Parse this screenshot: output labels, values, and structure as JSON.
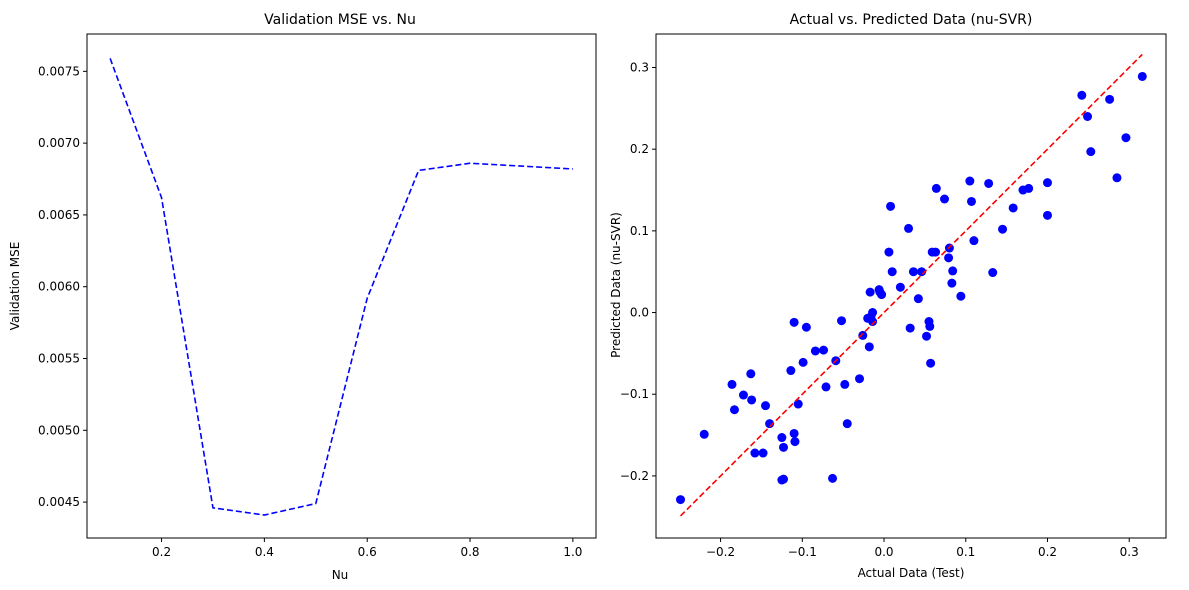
{
  "chart_data": [
    {
      "type": "line",
      "title": "Validation MSE vs. Nu",
      "xlabel": "Nu",
      "ylabel": "Validation MSE",
      "xlim": [
        0.055,
        1.045
      ],
      "ylim": [
        0.00425,
        0.00776
      ],
      "x_ticks": [
        0.2,
        0.4,
        0.6,
        0.8,
        1.0
      ],
      "x_tick_labels": [
        "0.2",
        "0.4",
        "0.6",
        "0.8",
        "1.0"
      ],
      "y_ticks": [
        0.0045,
        0.005,
        0.0055,
        0.006,
        0.0065,
        0.007,
        0.0075
      ],
      "y_tick_labels": [
        "0.0045",
        "0.0050",
        "0.0055",
        "0.0060",
        "0.0065",
        "0.0070",
        "0.0075"
      ],
      "grid": false,
      "series": [
        {
          "style": "dashed",
          "color": "#0000ff",
          "x": [
            0.1,
            0.2,
            0.3,
            0.4,
            0.5,
            0.6,
            0.7,
            0.8,
            0.9,
            1.0
          ],
          "y": [
            0.00759,
            0.00662,
            0.00446,
            0.00441,
            0.00449,
            0.00592,
            0.00681,
            0.00686,
            0.00684,
            0.00682
          ]
        }
      ]
    },
    {
      "type": "scatter",
      "title": "Actual vs. Predicted Data (nu-SVR)",
      "xlabel": "Actual Data (Test)",
      "ylabel": "Predicted Data (nu-SVR)",
      "xlim": [
        -0.279,
        0.345
      ],
      "ylim": [
        -0.276,
        0.341
      ],
      "x_ticks": [
        -0.2,
        -0.1,
        0.0,
        0.1,
        0.2,
        0.3
      ],
      "x_tick_labels": [
        "−0.2",
        "−0.1",
        "0.0",
        "0.1",
        "0.2",
        "0.3"
      ],
      "y_ticks": [
        -0.2,
        -0.1,
        0.0,
        0.1,
        0.2,
        0.3
      ],
      "y_tick_labels": [
        "−0.2",
        "−0.1",
        "0.0",
        "0.1",
        "0.2",
        "0.3"
      ],
      "grid": false,
      "series": [
        {
          "color": "#0000ff",
          "marker": "circle",
          "points": [
            [
              -0.249,
              -0.229
            ],
            [
              -0.22,
              -0.149
            ],
            [
              -0.186,
              -0.088
            ],
            [
              -0.183,
              -0.119
            ],
            [
              -0.172,
              -0.101
            ],
            [
              -0.163,
              -0.075
            ],
            [
              -0.162,
              -0.107
            ],
            [
              -0.158,
              -0.172
            ],
            [
              -0.148,
              -0.172
            ],
            [
              -0.145,
              -0.114
            ],
            [
              -0.14,
              -0.136
            ],
            [
              -0.125,
              -0.153
            ],
            [
              -0.125,
              -0.205
            ],
            [
              -0.123,
              -0.204
            ],
            [
              -0.123,
              -0.165
            ],
            [
              -0.114,
              -0.071
            ],
            [
              -0.11,
              -0.012
            ],
            [
              -0.11,
              -0.148
            ],
            [
              -0.109,
              -0.158
            ],
            [
              -0.105,
              -0.112
            ],
            [
              -0.099,
              -0.061
            ],
            [
              -0.095,
              -0.018
            ],
            [
              -0.084,
              -0.047
            ],
            [
              -0.074,
              -0.046
            ],
            [
              -0.071,
              -0.091
            ],
            [
              -0.063,
              -0.203
            ],
            [
              -0.059,
              -0.059
            ],
            [
              -0.052,
              -0.01
            ],
            [
              -0.048,
              -0.088
            ],
            [
              -0.045,
              -0.136
            ],
            [
              -0.03,
              -0.081
            ],
            [
              -0.026,
              -0.028
            ],
            [
              -0.02,
              -0.007
            ],
            [
              -0.018,
              -0.042
            ],
            [
              -0.017,
              0.025
            ],
            [
              -0.016,
              -0.005
            ],
            [
              -0.014,
              0.0
            ],
            [
              -0.014,
              -0.011
            ],
            [
              -0.006,
              0.028
            ],
            [
              -0.005,
              0.025
            ],
            [
              -0.003,
              0.022
            ],
            [
              0.006,
              0.074
            ],
            [
              0.008,
              0.13
            ],
            [
              0.01,
              0.05
            ],
            [
              0.02,
              0.031
            ],
            [
              0.03,
              0.103
            ],
            [
              0.032,
              -0.019
            ],
            [
              0.036,
              0.05
            ],
            [
              0.042,
              0.017
            ],
            [
              0.046,
              0.05
            ],
            [
              0.052,
              -0.029
            ],
            [
              0.055,
              -0.011
            ],
            [
              0.056,
              -0.017
            ],
            [
              0.057,
              -0.062
            ],
            [
              0.059,
              0.074
            ],
            [
              0.063,
              0.074
            ],
            [
              0.064,
              0.152
            ],
            [
              0.074,
              0.139
            ],
            [
              0.079,
              0.067
            ],
            [
              0.08,
              0.079
            ],
            [
              0.083,
              0.036
            ],
            [
              0.084,
              0.051
            ],
            [
              0.094,
              0.02
            ],
            [
              0.105,
              0.161
            ],
            [
              0.107,
              0.136
            ],
            [
              0.11,
              0.088
            ],
            [
              0.128,
              0.158
            ],
            [
              0.133,
              0.049
            ],
            [
              0.145,
              0.102
            ],
            [
              0.158,
              0.128
            ],
            [
              0.17,
              0.15
            ],
            [
              0.177,
              0.152
            ],
            [
              0.2,
              0.119
            ],
            [
              0.2,
              0.159
            ],
            [
              0.242,
              0.266
            ],
            [
              0.249,
              0.24
            ],
            [
              0.253,
              0.197
            ],
            [
              0.276,
              0.261
            ],
            [
              0.285,
              0.165
            ],
            [
              0.296,
              0.214
            ],
            [
              0.316,
              0.289
            ]
          ]
        },
        {
          "style": "dashed",
          "color": "#ff0000",
          "x": [
            -0.249,
            0.316
          ],
          "y": [
            -0.249,
            0.316
          ]
        }
      ]
    }
  ]
}
